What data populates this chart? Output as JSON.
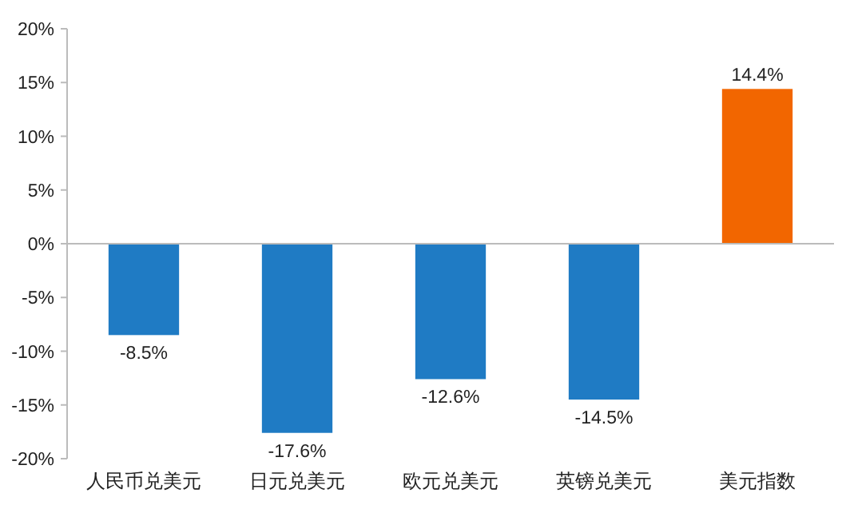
{
  "chart_data": {
    "type": "bar",
    "categories": [
      "人民币兑美元",
      "日元兑美元",
      "欧元兑美元",
      "英镑兑美元",
      "美元指数"
    ],
    "values": [
      -8.5,
      -17.6,
      -12.6,
      -14.5,
      14.4
    ],
    "colors": [
      "#1f7bc4",
      "#1f7bc4",
      "#1f7bc4",
      "#1f7bc4",
      "#f26600"
    ],
    "value_labels": [
      "-8.5%",
      "-17.6%",
      "-12.6%",
      "-14.5%",
      "14.4%"
    ],
    "ylim": [
      -20,
      20
    ],
    "yticks": [
      {
        "value": -20,
        "label": "-20%"
      },
      {
        "value": -15,
        "label": "-15%"
      },
      {
        "value": -10,
        "label": "-10%"
      },
      {
        "value": -5,
        "label": "-5%"
      },
      {
        "value": 0,
        "label": "0%"
      },
      {
        "value": 5,
        "label": "5%"
      },
      {
        "value": 10,
        "label": "10%"
      },
      {
        "value": 15,
        "label": "15%"
      },
      {
        "value": 20,
        "label": "20%"
      }
    ]
  }
}
